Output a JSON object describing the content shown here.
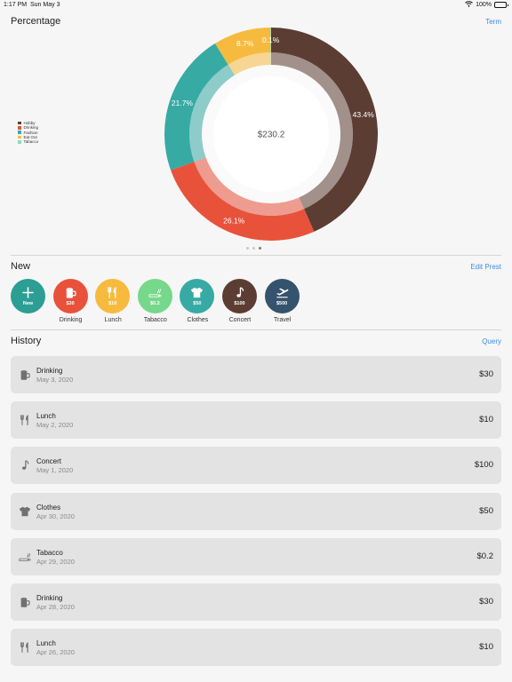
{
  "status_bar": {
    "time": "1:17 PM",
    "date": "Sun May 3",
    "battery": "100%",
    "battery_level": 1.0
  },
  "percentage": {
    "title": "Percentage",
    "term_label": "Term"
  },
  "chart_data": {
    "type": "pie",
    "center_label": "$230.2",
    "categories": [
      "Hobby",
      "Drinking",
      "Fashion",
      "Eat Out",
      "Tabacco"
    ],
    "values": [
      43.4,
      26.1,
      21.7,
      8.7,
      0.1
    ],
    "labels": [
      "43.4%",
      "26.1%",
      "21.7%",
      "8.7%",
      "0.1%"
    ],
    "colors": [
      "#5c3d33",
      "#e8523b",
      "#37aaa4",
      "#f6bb3e",
      "#8fd9c0"
    ],
    "legend": "left"
  },
  "pager": {
    "count": 3,
    "active": 2
  },
  "new_section": {
    "title": "New",
    "edit_label": "Edit Prest",
    "presets": [
      {
        "label": "",
        "amount": "New",
        "icon": "plus-icon",
        "color": "#2c9e94"
      },
      {
        "label": "Drinking",
        "amount": "$30",
        "icon": "mug-icon",
        "color": "#e8523b"
      },
      {
        "label": "Lunch",
        "amount": "$10",
        "icon": "fork-knife-icon",
        "color": "#f6bb3e"
      },
      {
        "label": "Tabacco",
        "amount": "$0.2",
        "icon": "cigarette-icon",
        "color": "#76d88a"
      },
      {
        "label": "Clothes",
        "amount": "$50",
        "icon": "shirt-icon",
        "color": "#37aaa4"
      },
      {
        "label": "Concert",
        "amount": "$100",
        "icon": "music-note-icon",
        "color": "#5c3d33"
      },
      {
        "label": "Travel",
        "amount": "$500",
        "icon": "airplane-icon",
        "color": "#35536d"
      }
    ]
  },
  "history": {
    "title": "History",
    "query_label": "Query",
    "items": [
      {
        "name": "Drinking",
        "date": "May 3, 2020",
        "amount": "$30",
        "icon": "mug-icon"
      },
      {
        "name": "Lunch",
        "date": "May 2, 2020",
        "amount": "$10",
        "icon": "fork-knife-icon"
      },
      {
        "name": "Concert",
        "date": "May 1, 2020",
        "amount": "$100",
        "icon": "music-note-icon"
      },
      {
        "name": "Clothes",
        "date": "Apr 30, 2020",
        "amount": "$50",
        "icon": "shirt-icon"
      },
      {
        "name": "Tabacco",
        "date": "Apr 29, 2020",
        "amount": "$0.2",
        "icon": "cigarette-icon"
      },
      {
        "name": "Drinking",
        "date": "Apr 28, 2020",
        "amount": "$30",
        "icon": "mug-icon"
      },
      {
        "name": "Lunch",
        "date": "Apr 26, 2020",
        "amount": "$10",
        "icon": "fork-knife-icon"
      }
    ]
  }
}
